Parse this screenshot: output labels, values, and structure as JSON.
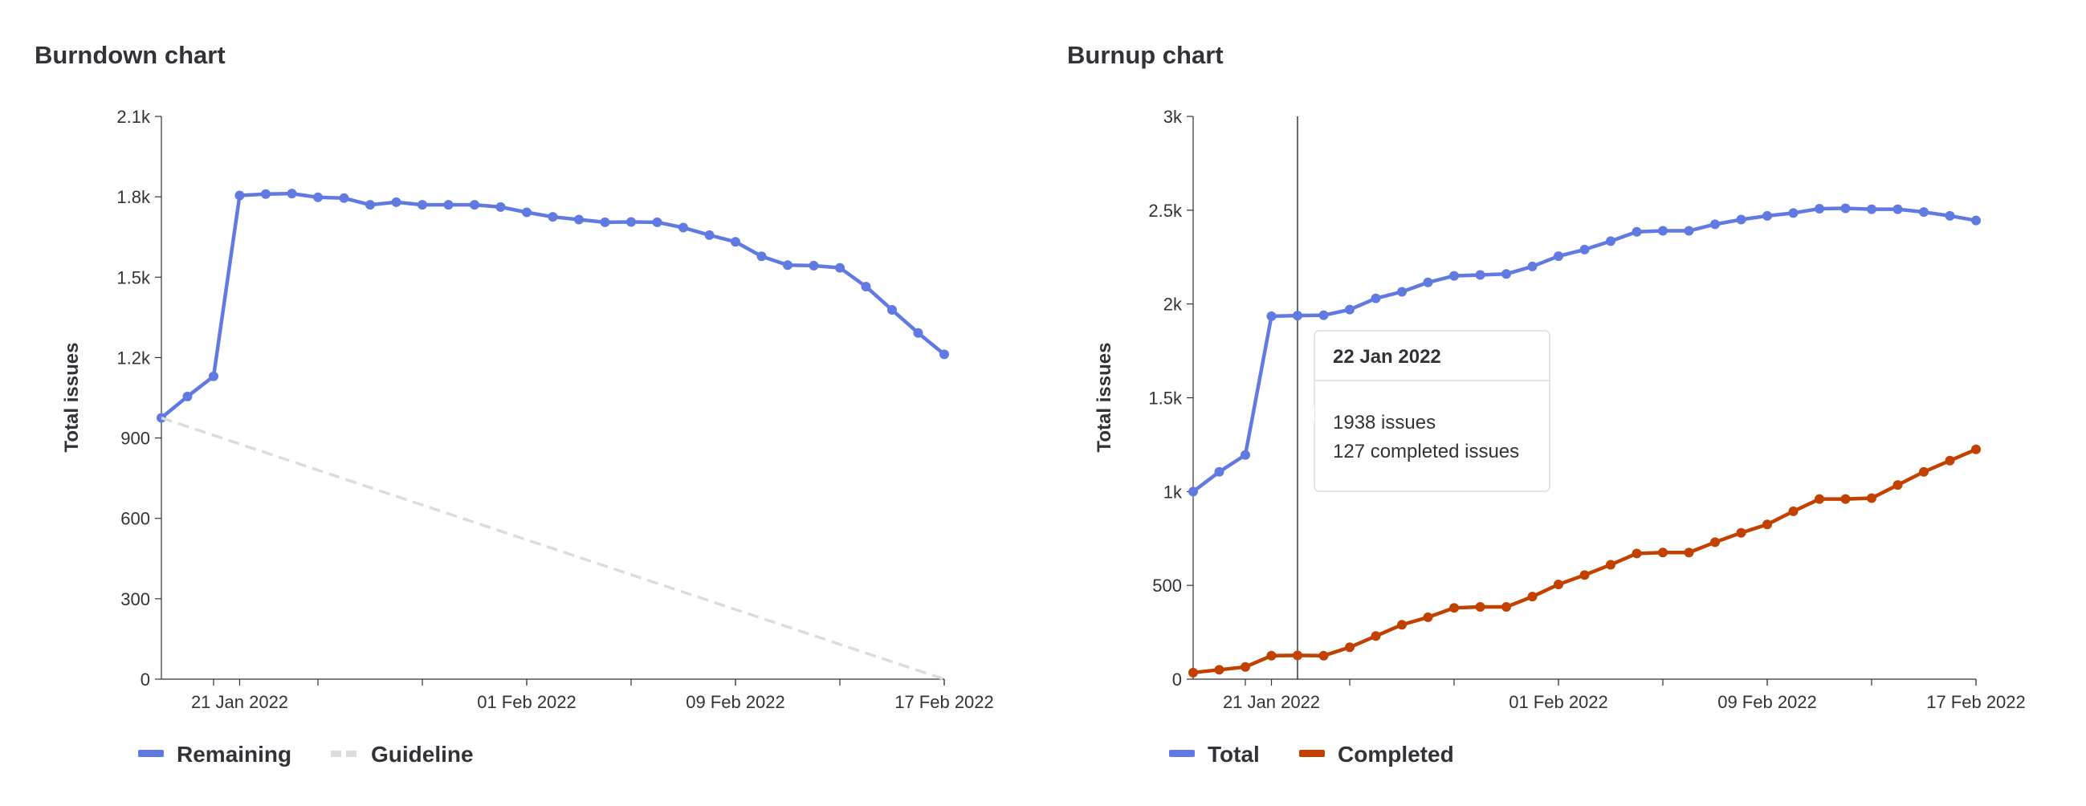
{
  "chart_data": [
    {
      "type": "line",
      "title": "Burndown chart",
      "xlabel": "",
      "ylabel": "Total issues",
      "ylim": [
        0,
        2100
      ],
      "yticks": [
        "0",
        "300",
        "600",
        "900",
        "1.2k",
        "1.5k",
        "1.8k",
        "2.1k"
      ],
      "ytick_values": [
        0,
        300,
        600,
        900,
        1200,
        1500,
        1800,
        2100
      ],
      "xticks": [
        "21 Jan 2022",
        "01 Feb 2022",
        "09 Feb 2022",
        "17 Feb 2022"
      ],
      "xtick_days": [
        3,
        14,
        22,
        30
      ],
      "x_start": "2022-01-18",
      "x_end": "2022-02-17",
      "x_days": [
        0,
        1,
        2,
        3,
        4,
        5,
        6,
        7,
        8,
        9,
        10,
        11,
        12,
        13,
        14,
        15,
        16,
        17,
        18,
        19,
        20,
        21,
        22,
        23,
        24,
        25,
        26,
        27,
        28,
        29,
        30
      ],
      "series": [
        {
          "name": "Remaining",
          "color": "#617ae2",
          "values": [
            975,
            1055,
            1130,
            1805,
            1810,
            1812,
            1798,
            1795,
            1770,
            1780,
            1770,
            1770,
            1770,
            1762,
            1742,
            1725,
            1715,
            1705,
            1706,
            1705,
            1685,
            1657,
            1632,
            1578,
            1545,
            1543,
            1535,
            1465,
            1378,
            1292,
            1212
          ]
        },
        {
          "name": "Guideline",
          "color": "#dcdcde",
          "dashed": true,
          "values_endpoints": [
            975,
            0
          ]
        }
      ]
    },
    {
      "type": "line",
      "title": "Burnup chart",
      "xlabel": "",
      "ylabel": "Total issues",
      "ylim": [
        0,
        3000
      ],
      "yticks": [
        "0",
        "500",
        "1k",
        "1.5k",
        "2k",
        "2.5k",
        "3k"
      ],
      "ytick_values": [
        0,
        500,
        1000,
        1500,
        2000,
        2500,
        3000
      ],
      "xticks": [
        "21 Jan 2022",
        "01 Feb 2022",
        "09 Feb 2022",
        "17 Feb 2022"
      ],
      "xtick_days": [
        3,
        14,
        22,
        30
      ],
      "x_start": "2022-01-18",
      "x_end": "2022-02-17",
      "x_days": [
        0,
        1,
        2,
        3,
        4,
        5,
        6,
        7,
        8,
        9,
        10,
        11,
        12,
        13,
        14,
        15,
        16,
        17,
        18,
        19,
        20,
        21,
        22,
        23,
        24,
        25,
        26,
        27,
        28,
        29,
        30
      ],
      "series": [
        {
          "name": "Total",
          "color": "#617ae2",
          "values": [
            1000,
            1105,
            1195,
            1935,
            1938,
            1940,
            1970,
            2030,
            2065,
            2115,
            2150,
            2155,
            2160,
            2200,
            2255,
            2290,
            2335,
            2385,
            2390,
            2390,
            2425,
            2450,
            2470,
            2485,
            2508,
            2510,
            2505,
            2505,
            2490,
            2470,
            2445
          ]
        },
        {
          "name": "Completed",
          "color": "#c24100",
          "values": [
            35,
            50,
            65,
            125,
            127,
            125,
            170,
            230,
            290,
            330,
            380,
            385,
            385,
            440,
            505,
            555,
            610,
            670,
            675,
            675,
            730,
            780,
            825,
            895,
            960,
            960,
            965,
            1035,
            1105,
            1165,
            1225
          ]
        }
      ],
      "tooltip": {
        "day": 4,
        "date": "22 Jan 2022",
        "line1": "1938 issues",
        "line2": "127 completed issues"
      }
    }
  ]
}
